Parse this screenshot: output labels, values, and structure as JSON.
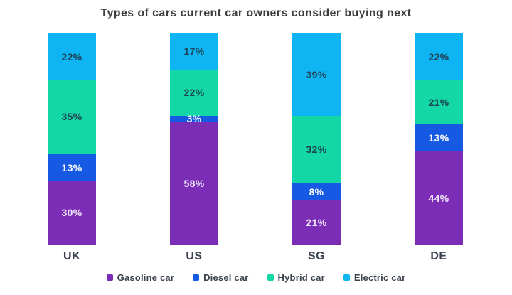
{
  "title": "Types of cars current car owners consider buying next",
  "colors": {
    "gasoline": "#7b2db6",
    "diesel": "#1659e2",
    "hybrid": "#13d7a4",
    "electric": "#0fb4f3",
    "title_text": "#3d3d3d",
    "axis_text": "#3a424e",
    "legend_text": "#3a424e",
    "baseline": "#e7e7e7"
  },
  "chart_data": {
    "type": "bar",
    "stacked": true,
    "title": "Types of cars current car owners consider buying next",
    "categories": [
      "UK",
      "US",
      "SG",
      "DE"
    ],
    "series": [
      {
        "name": "Gasoline car",
        "key": "gasoline",
        "values": [
          30,
          58,
          21,
          44
        ],
        "label_color": "#f0e7fa"
      },
      {
        "name": "Diesel car",
        "key": "diesel",
        "values": [
          13,
          3,
          8,
          13
        ],
        "label_color": "#ffffff"
      },
      {
        "name": "Hybrid car",
        "key": "hybrid",
        "values": [
          35,
          22,
          32,
          21
        ],
        "label_color": "#1d4355"
      },
      {
        "name": "Electric car",
        "key": "electric",
        "values": [
          22,
          17,
          39,
          22
        ],
        "label_color": "#1d4355"
      }
    ],
    "value_suffix": "%",
    "xlabel": "",
    "ylabel": "",
    "ylim": [
      0,
      100
    ],
    "grid": false,
    "legend_position": "bottom"
  }
}
